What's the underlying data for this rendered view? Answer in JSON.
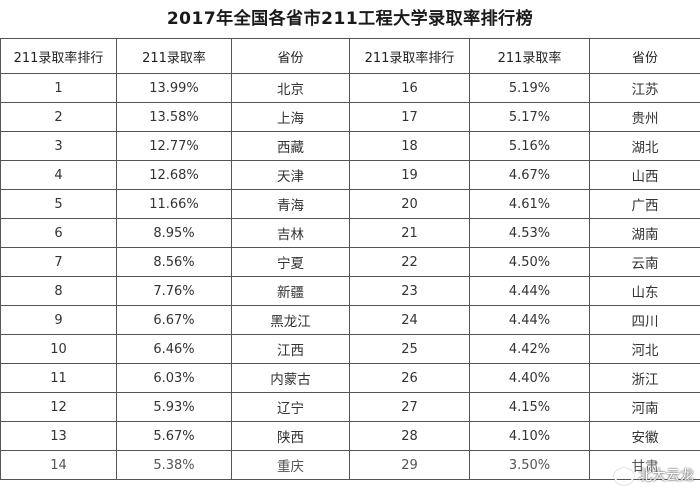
{
  "title": "2017年全国各省市211工程大学录取率排行榜",
  "headers": [
    "211录取率排行",
    "211录取率",
    "省份",
    "211录取率排行",
    "211录取率",
    "省份"
  ],
  "rows": [
    {
      "rank_a": "1",
      "rate_a": "13.99%",
      "prov_a": "北京",
      "rank_b": "16",
      "rate_b": "5.19%",
      "prov_b": "江苏"
    },
    {
      "rank_a": "2",
      "rate_a": "13.58%",
      "prov_a": "上海",
      "rank_b": "17",
      "rate_b": "5.17%",
      "prov_b": "贵州"
    },
    {
      "rank_a": "3",
      "rate_a": "12.77%",
      "prov_a": "西藏",
      "rank_b": "18",
      "rate_b": "5.16%",
      "prov_b": "湖北"
    },
    {
      "rank_a": "4",
      "rate_a": "12.68%",
      "prov_a": "天津",
      "rank_b": "19",
      "rate_b": "4.67%",
      "prov_b": "山西"
    },
    {
      "rank_a": "5",
      "rate_a": "11.66%",
      "prov_a": "青海",
      "rank_b": "20",
      "rate_b": "4.61%",
      "prov_b": "广西"
    },
    {
      "rank_a": "6",
      "rate_a": "8.95%",
      "prov_a": "吉林",
      "rank_b": "21",
      "rate_b": "4.53%",
      "prov_b": "湖南"
    },
    {
      "rank_a": "7",
      "rate_a": "8.56%",
      "prov_a": "宁夏",
      "rank_b": "22",
      "rate_b": "4.50%",
      "prov_b": "云南"
    },
    {
      "rank_a": "8",
      "rate_a": "7.76%",
      "prov_a": "新疆",
      "rank_b": "23",
      "rate_b": "4.44%",
      "prov_b": "山东"
    },
    {
      "rank_a": "9",
      "rate_a": "6.67%",
      "prov_a": "黑龙江",
      "rank_b": "24",
      "rate_b": "4.44%",
      "prov_b": "四川"
    },
    {
      "rank_a": "10",
      "rate_a": "6.46%",
      "prov_a": "江西",
      "rank_b": "25",
      "rate_b": "4.42%",
      "prov_b": "河北"
    },
    {
      "rank_a": "11",
      "rate_a": "6.03%",
      "prov_a": "内蒙古",
      "rank_b": "26",
      "rate_b": "4.40%",
      "prov_b": "浙江"
    },
    {
      "rank_a": "12",
      "rate_a": "5.93%",
      "prov_a": "辽宁",
      "rank_b": "27",
      "rate_b": "4.15%",
      "prov_b": "河南"
    },
    {
      "rank_a": "13",
      "rate_a": "5.67%",
      "prov_a": "陕西",
      "rank_b": "28",
      "rate_b": "4.10%",
      "prov_b": "安徽"
    },
    {
      "rank_a": "14",
      "rate_a": "5.38%",
      "prov_a": "重庆",
      "rank_b": "29",
      "rate_b": "3.50%",
      "prov_b": "甘肃"
    }
  ],
  "watermark": {
    "icon": "weibo-icon",
    "text": "北大云龙"
  }
}
